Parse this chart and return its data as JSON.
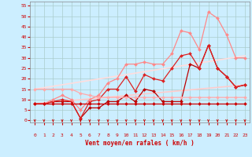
{
  "xlabel": "Vent moyen/en rafales ( km/h )",
  "bg_color": "#cceeff",
  "grid_color": "#aacccc",
  "x_ticks": [
    0,
    1,
    2,
    3,
    4,
    5,
    6,
    7,
    8,
    9,
    10,
    11,
    12,
    13,
    14,
    15,
    16,
    17,
    18,
    19,
    20,
    21,
    22,
    23
  ],
  "y_ticks": [
    0,
    5,
    10,
    15,
    20,
    25,
    30,
    35,
    40,
    45,
    50,
    55
  ],
  "ylim": [
    -1,
    57
  ],
  "xlim": [
    -0.5,
    23.5
  ],
  "lines": [
    {
      "x": [
        0,
        1,
        2,
        3,
        4,
        5,
        6,
        7,
        8,
        9,
        10,
        11,
        12,
        13,
        14,
        15,
        16,
        17,
        18,
        19,
        20,
        21,
        22,
        23
      ],
      "y": [
        8,
        8,
        9,
        9,
        9,
        1,
        6,
        6,
        9,
        9,
        12,
        9,
        15,
        14,
        9,
        9,
        9,
        27,
        25,
        36,
        25,
        21,
        16,
        17
      ],
      "color": "#bb0000",
      "lw": 0.9,
      "marker": "D",
      "ms": 2.0
    },
    {
      "x": [
        0,
        1,
        2,
        3,
        4,
        5,
        6,
        7,
        8,
        9,
        10,
        11,
        12,
        13,
        14,
        15,
        16,
        17,
        18,
        19,
        20,
        21,
        22,
        23
      ],
      "y": [
        8,
        8,
        9,
        10,
        9,
        1,
        9,
        10,
        15,
        15,
        21,
        14,
        22,
        20,
        19,
        25,
        31,
        32,
        25,
        36,
        25,
        21,
        16,
        17
      ],
      "color": "#dd2222",
      "lw": 0.9,
      "marker": "D",
      "ms": 2.0
    },
    {
      "x": [
        0,
        1,
        2,
        3,
        4,
        5,
        6,
        7,
        8,
        9,
        10,
        11,
        12,
        13,
        14,
        15,
        16,
        17,
        18,
        19,
        20,
        21,
        22,
        23
      ],
      "y": [
        8,
        8,
        10,
        12,
        10,
        5,
        10,
        12,
        18,
        20,
        27,
        27,
        28,
        27,
        27,
        32,
        43,
        42,
        34,
        52,
        49,
        41,
        30,
        30
      ],
      "color": "#ff8888",
      "lw": 0.9,
      "marker": "D",
      "ms": 2.0
    },
    {
      "x": [
        0,
        1,
        2,
        3,
        4,
        5,
        6,
        7,
        8,
        9,
        10,
        11,
        12,
        13,
        14,
        15,
        16,
        17,
        18,
        19,
        20,
        21,
        22,
        23
      ],
      "y": [
        8,
        8,
        8,
        8,
        8,
        8,
        8,
        8,
        8,
        8,
        8,
        8,
        8,
        8,
        8,
        8,
        8,
        8,
        8,
        8,
        8,
        8,
        8,
        8
      ],
      "color": "#cc0000",
      "lw": 0.9,
      "marker": "D",
      "ms": 2.0
    },
    {
      "x": [
        0,
        1,
        2,
        3,
        4,
        5,
        6,
        7,
        8,
        9,
        10,
        11,
        12,
        13,
        14,
        15,
        16,
        17,
        18,
        19,
        20,
        21,
        22,
        23
      ],
      "y": [
        15,
        15,
        15,
        15,
        15,
        13,
        12,
        11,
        11,
        11,
        11,
        11,
        11,
        11,
        11,
        11,
        11,
        11,
        11,
        11,
        11,
        11,
        11,
        11
      ],
      "color": "#ffaaaa",
      "lw": 0.9,
      "marker": "D",
      "ms": 2.0
    },
    {
      "x": [
        0,
        23
      ],
      "y": [
        8,
        17
      ],
      "color": "#ffcccc",
      "lw": 1.2,
      "marker": null,
      "ms": 0
    },
    {
      "x": [
        0,
        23
      ],
      "y": [
        15,
        31
      ],
      "color": "#ffdddd",
      "lw": 1.2,
      "marker": null,
      "ms": 0
    }
  ],
  "arrows_color": "#cc0000"
}
